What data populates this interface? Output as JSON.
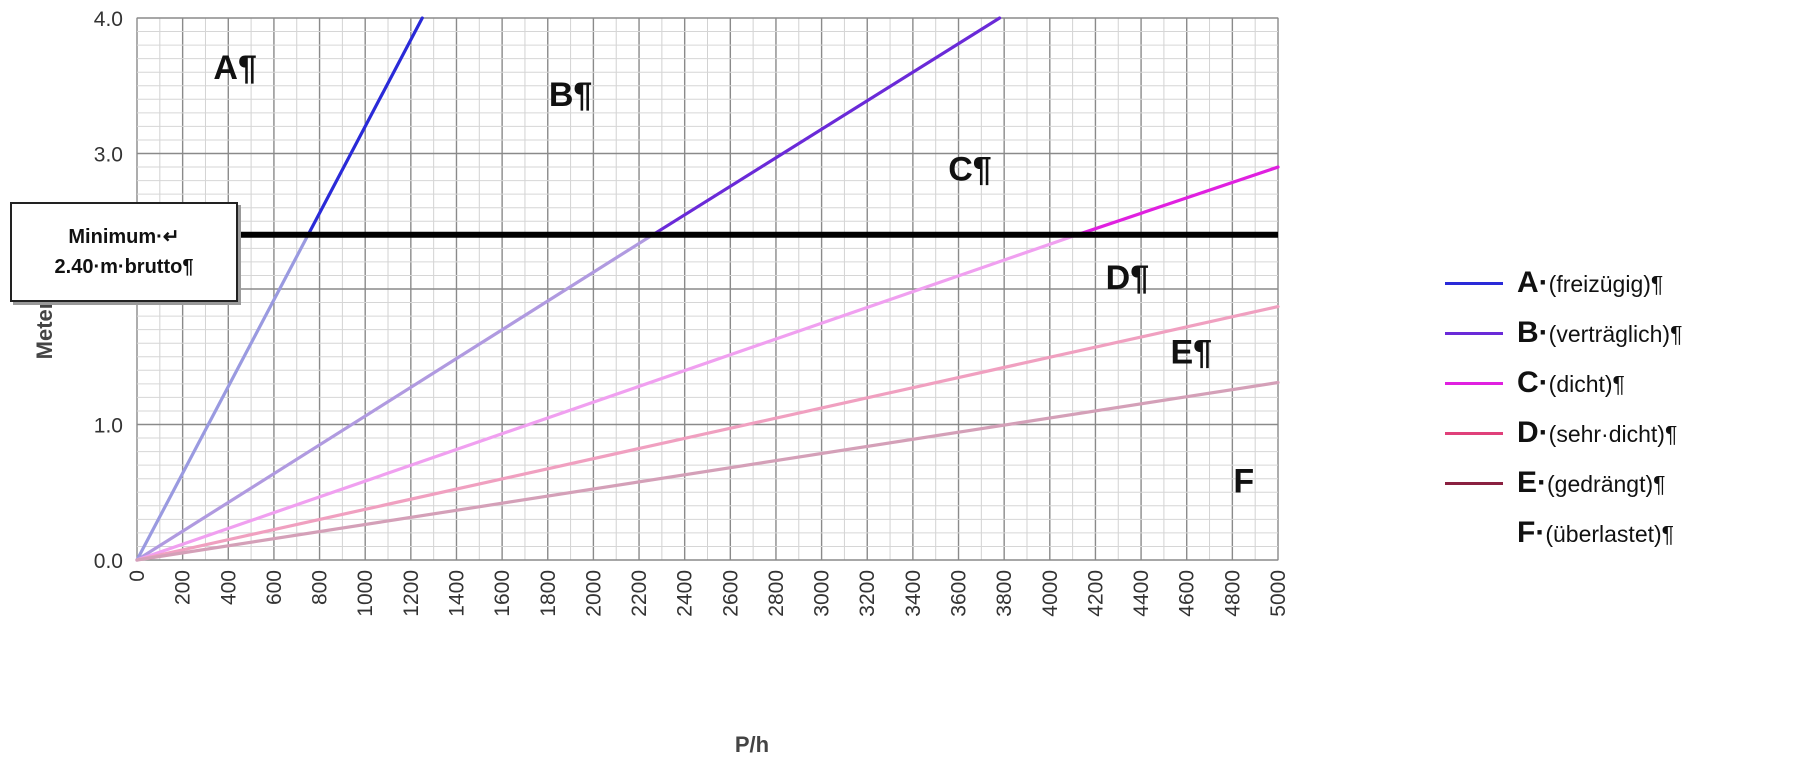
{
  "chart_data": {
    "type": "line",
    "xlabel": "P/h",
    "ylabel": "Meter",
    "xlim": [
      0,
      5000
    ],
    "ylim": [
      0,
      4.0
    ],
    "x_ticks": [
      "0",
      "200",
      "400",
      "600",
      "800",
      "1000",
      "1200",
      "1400",
      "1600",
      "1800",
      "2000",
      "2200",
      "2400",
      "2600",
      "2800",
      "3000",
      "3200",
      "3400",
      "3600",
      "3800",
      "4000",
      "4200",
      "4400",
      "4600",
      "4800",
      "5000"
    ],
    "y_ticks": [
      "0.0",
      "1.0",
      "2.0",
      "3.0",
      "4.0"
    ],
    "grid": true,
    "legend_position": "right",
    "threshold": {
      "y": 2.4,
      "label_line1": "Minimum·↵",
      "label_line2": "2.40·m·brutto¶",
      "color": "#000000"
    },
    "series": [
      {
        "name": "A·(freizügig)¶",
        "letter": "A·",
        "desc": "(freizügig)¶",
        "color": "#2a2ad8",
        "light_color": "#9a9ae0",
        "x": [
          0,
          750,
          1250
        ],
        "y": [
          0,
          2.4,
          4.0
        ]
      },
      {
        "name": "B·(verträglich)¶",
        "letter": "B·",
        "desc": "(verträglich)¶",
        "color": "#6a2ad8",
        "light_color": "#b09ae0",
        "x": [
          0,
          2260,
          3780
        ],
        "y": [
          0,
          2.4,
          4.0
        ]
      },
      {
        "name": "C·(dicht)¶",
        "letter": "C·",
        "desc": "(dicht)¶",
        "color": "#e020e0",
        "light_color": "#f0a0f0",
        "x": [
          0,
          4120,
          5000
        ],
        "y": [
          0,
          2.4,
          2.9
        ]
      },
      {
        "name": "D·(sehr·dicht)¶",
        "letter": "D·",
        "desc": "(sehr·dicht)¶",
        "color": "#e0407a",
        "light_color": "#f0a0c0",
        "x": [
          0,
          5000
        ],
        "y": [
          0,
          1.87
        ]
      },
      {
        "name": "E·(gedrängt)¶",
        "letter": "E·",
        "desc": "(gedrängt)¶",
        "color": "#8a2040",
        "light_color": "#d4a0b8",
        "x": [
          0,
          5000
        ],
        "y": [
          0,
          1.31
        ]
      },
      {
        "name": "F·(überlastet)¶",
        "letter": "F·",
        "desc": "(überlastet)¶",
        "color": "",
        "light_color": "",
        "x": [],
        "y": []
      }
    ],
    "zone_labels": [
      {
        "text": "A¶",
        "x": 430,
        "y": 3.55
      },
      {
        "text": "B¶",
        "x": 1900,
        "y": 3.35
      },
      {
        "text": "C¶",
        "x": 3650,
        "y": 2.8
      },
      {
        "text": "D¶",
        "x": 4340,
        "y": 2.0
      },
      {
        "text": "E¶",
        "x": 4620,
        "y": 1.45
      },
      {
        "text": "F",
        "x": 4850,
        "y": 0.5
      }
    ]
  }
}
